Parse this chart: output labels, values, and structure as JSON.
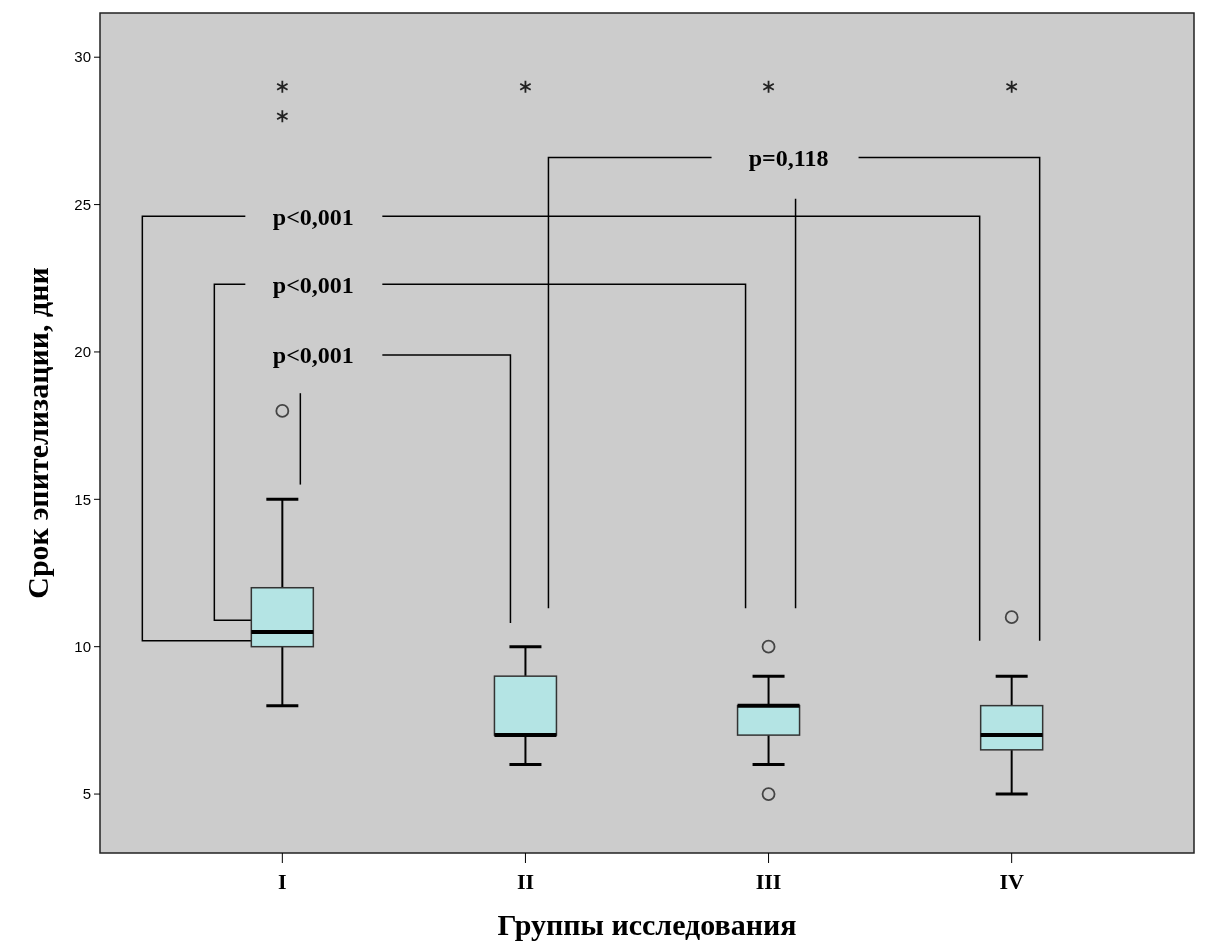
{
  "chart_data": {
    "type": "box",
    "xlabel": "Группы исследования",
    "ylabel": "Срок эпителизации, дни",
    "categories": [
      "I",
      "II",
      "III",
      "IV"
    ],
    "boxes": [
      {
        "low": 8,
        "q1": 10,
        "median": 10.5,
        "q3": 12,
        "high": 15,
        "outliers": [
          18,
          28,
          29
        ]
      },
      {
        "low": 6,
        "q1": 7,
        "median": 7,
        "q3": 9,
        "high": 10,
        "outliers": [
          29
        ]
      },
      {
        "low": 6,
        "q1": 7,
        "median": 8,
        "q3": 8,
        "high": 9,
        "outliers": [
          5,
          10,
          29
        ]
      },
      {
        "low": 5,
        "q1": 6.5,
        "median": 7,
        "q3": 8,
        "high": 9,
        "outliers": [
          11,
          29
        ]
      }
    ],
    "color": "#b4e4e4",
    "ylim": [
      3,
      31.5
    ],
    "yticks": [
      5,
      10,
      15,
      20,
      25,
      30
    ],
    "annotations": [
      "p<0,001",
      "p<0,001",
      "p<0,001",
      "p=0,118"
    ]
  }
}
